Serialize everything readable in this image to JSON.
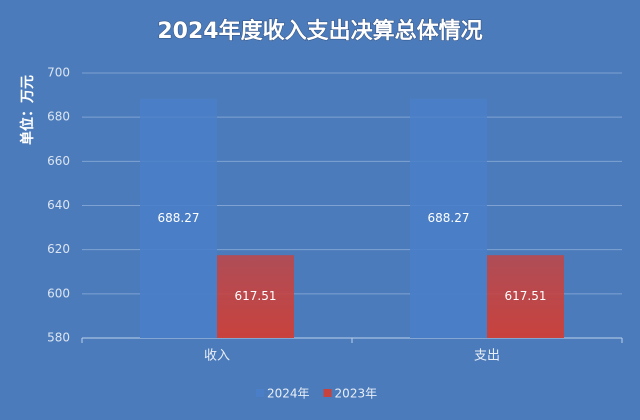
{
  "chart_data": {
    "type": "bar",
    "title": "2024年度收入支出决算总体情况",
    "y_label": "单位：万元",
    "categories": [
      "收入",
      "支出"
    ],
    "series": [
      {
        "name": "2024年",
        "color": "#4a7fc8",
        "values": [
          688.27,
          688.27
        ]
      },
      {
        "name": "2023年",
        "color": "#c8423e",
        "values": [
          617.51,
          617.51
        ]
      }
    ],
    "ylim": [
      580,
      700
    ],
    "yticks": [
      580,
      600,
      620,
      640,
      660,
      680,
      700
    ],
    "grid": true
  }
}
